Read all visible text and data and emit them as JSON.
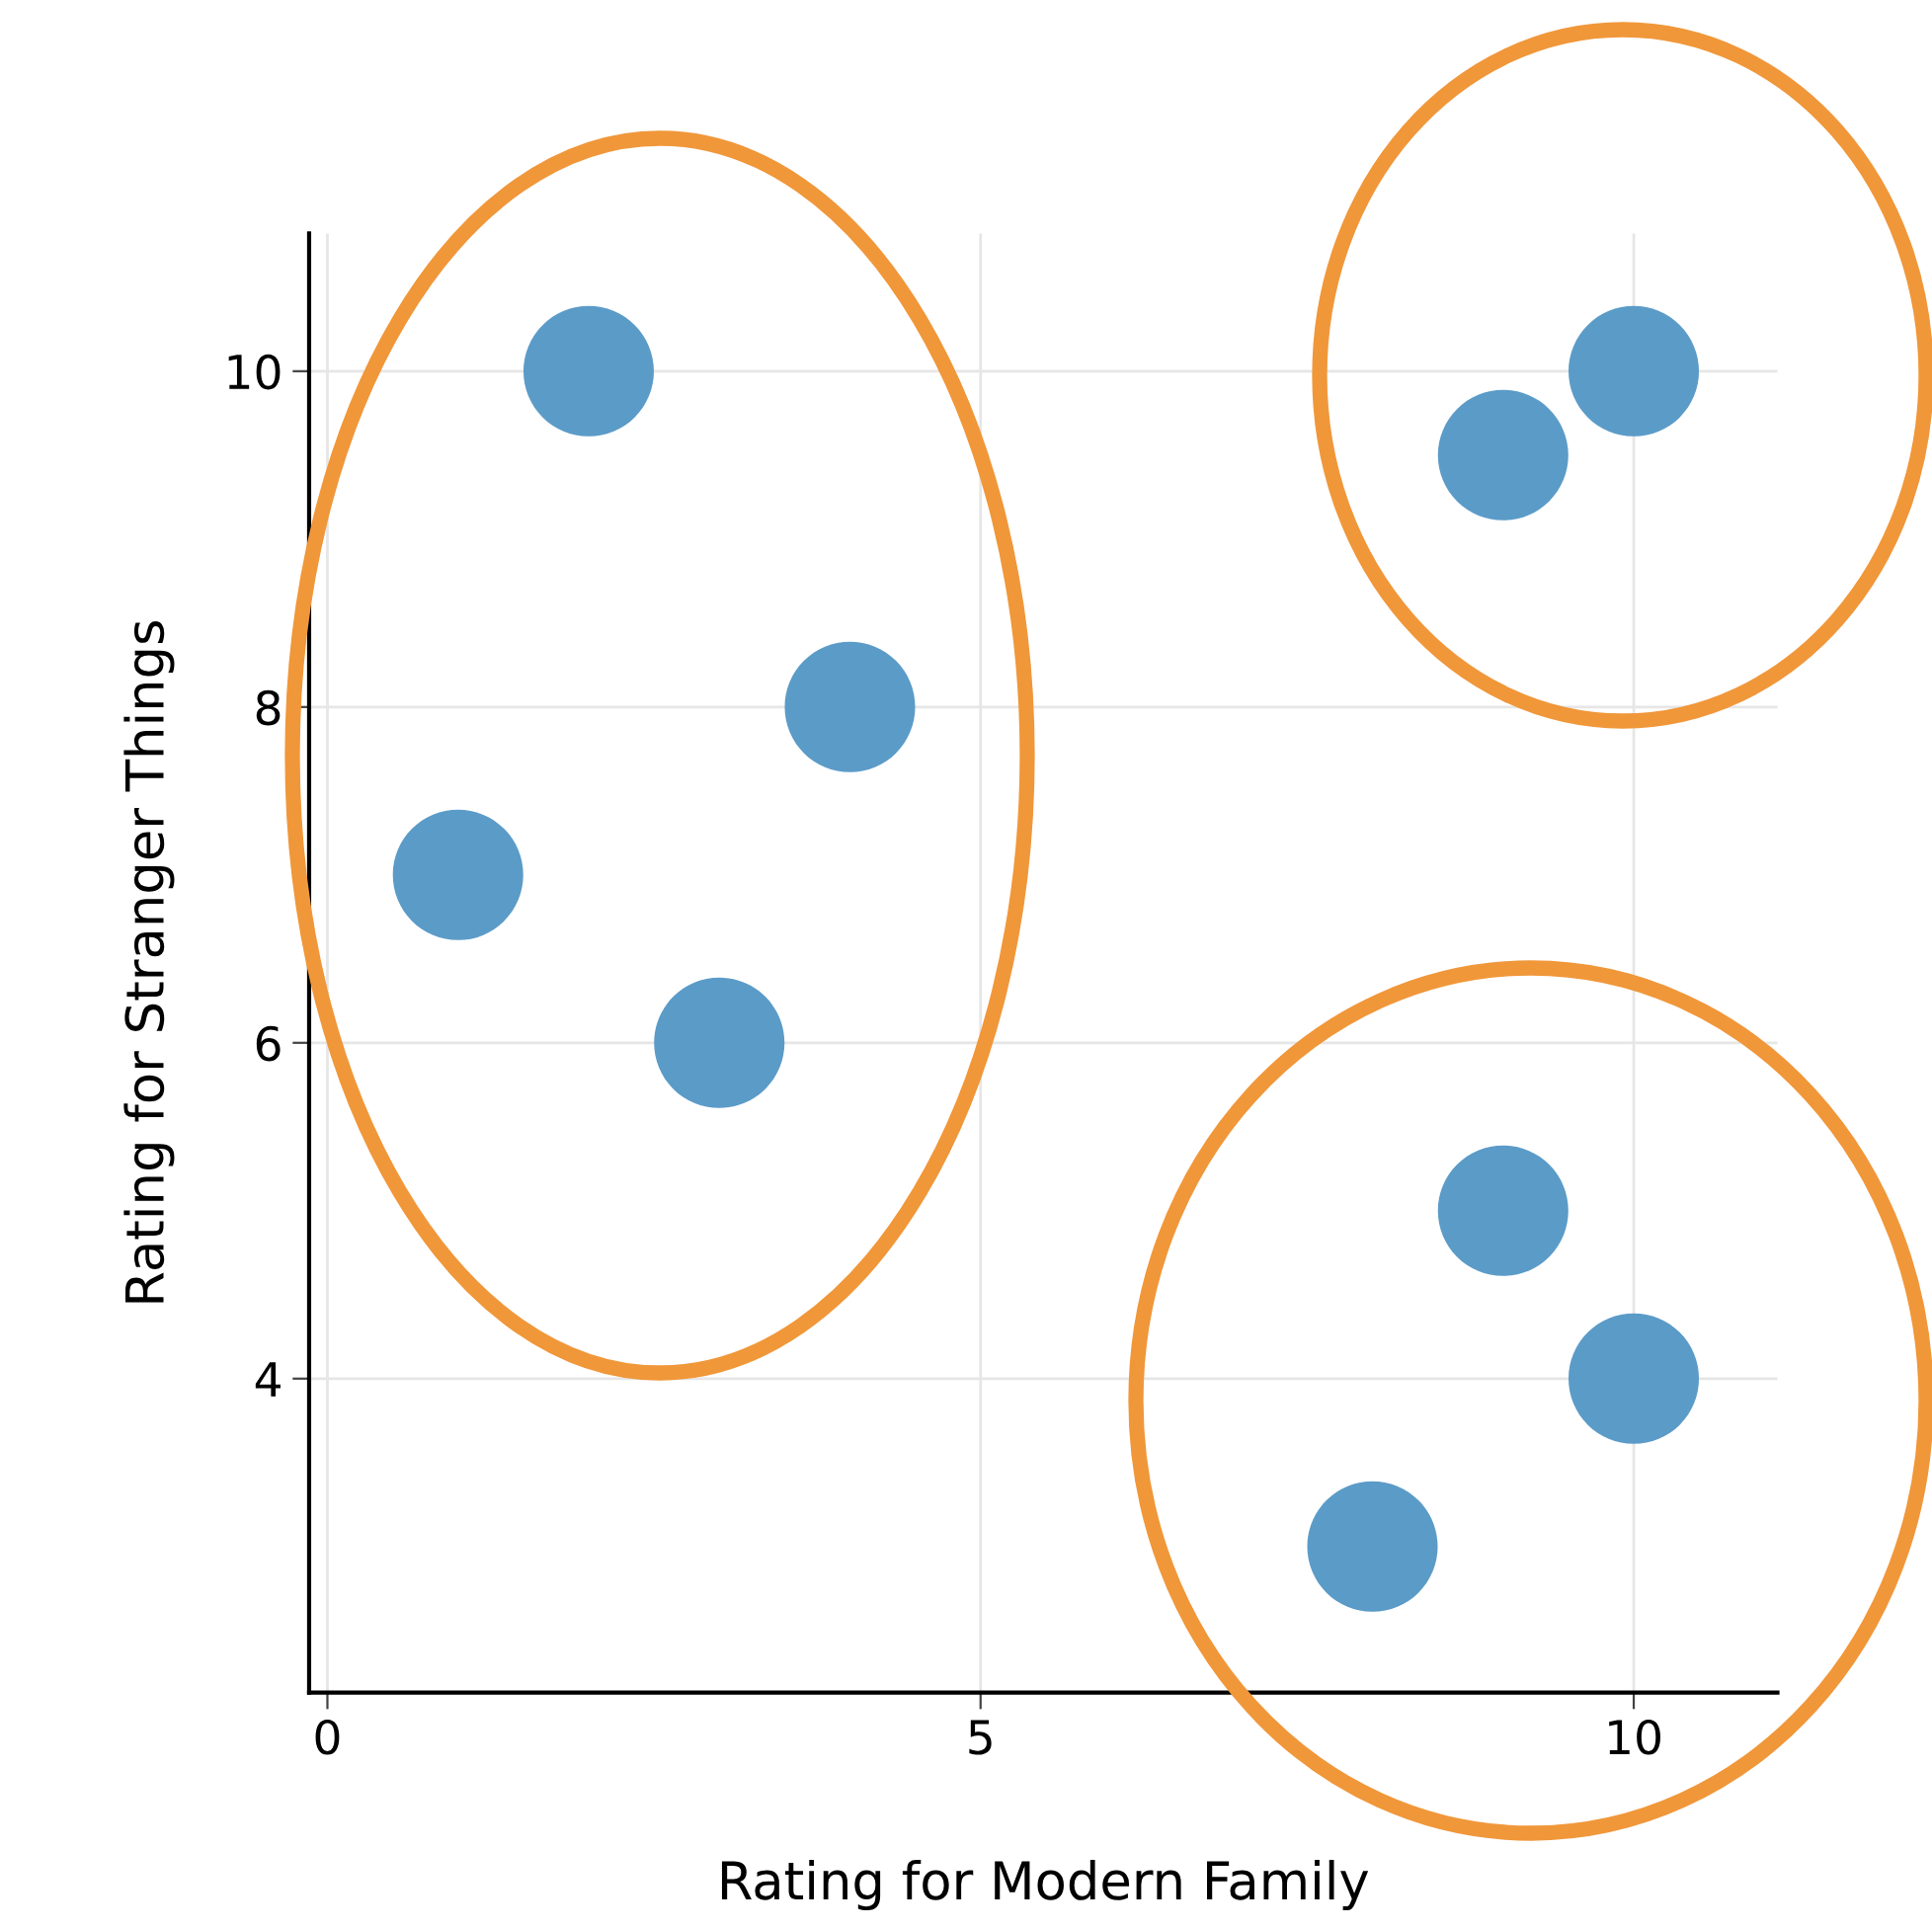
{
  "chart_data": {
    "type": "scatter",
    "xlabel": "Rating for Modern Family",
    "ylabel": "Rating for Stranger Things",
    "x": [
      2,
      4,
      1,
      3,
      9,
      10,
      9,
      10,
      8
    ],
    "values": [
      10,
      8,
      7,
      6,
      9.5,
      10,
      5,
      4,
      3
    ],
    "color": "#5b9bc8",
    "marker": "circle",
    "xlim": [
      -0.14,
      11.1
    ],
    "ylim": [
      2.13,
      10.82
    ],
    "xticks": [
      0,
      5,
      10
    ],
    "yticks": [
      4,
      6,
      8,
      10
    ],
    "grid": true,
    "legend": false
  }
}
